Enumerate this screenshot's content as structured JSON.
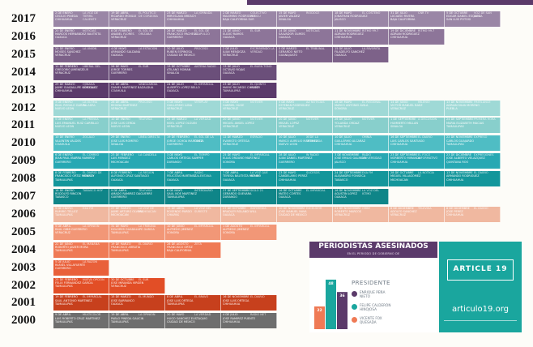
{
  "chart_data": {
    "type": "timeline",
    "rows": [
      {
        "year": "2017",
        "color": "#9a86a6",
        "cells": [
          [
            "2 DE ENERO\nCECILIO PINEDA\nCHIHUAHUA",
            "LA VOZ DE\nTIERRA CALIENTE"
          ],
          [
            "19 DE ABRIL\nRICARDO MONLUI\nVERACRUZ",
            "EL POLITICO\nDE CORDOBA"
          ],
          [
            "23 DE MARZO\nMIROSLAVA BREACH\nCHIHUAHUA",
            "LA JORNADA"
          ],
          [
            "2 DE MARZO\nMAXIMINO RODRIGUEZ\nBAJA CALIFORNIA SUR",
            "COLECTIVO PERICU"
          ],
          [
            "15 DE MAYO\nJAVIER VALDEZ\nSINALOA",
            "RIODOCE"
          ],
          [
            "18 DE MAYO\nJONATHAN RODRIGUEZ\nJALISCO",
            "EL COSTENO"
          ],
          [
            "31 DE JULIO\nLUCIANO RIVERA\nBAJA CALIFORNIA",
            "CNR TV"
          ],
          [
            "5 DE OCTUBRE\nEDGAR DANIEL ESQUEDA\nSAN LUIS POTOSI",
            "VOZ DE SAN LUIS"
          ]
        ]
      },
      {
        "year": "2016",
        "color": "#8d7599",
        "cells": [
          [
            "20 DE ENERO\nMARCOS HERNANDEZ BAUTISTA\nOAXACA",
            "NOTICIAS"
          ],
          [
            "8 DE FEBRERO\nANABEL FLORES\nVERACRUZ",
            "EL SOL DE ORIZABA"
          ],
          [
            "26 DE MARZO\nFRANCISCO PACHECO\nGUERRERO",
            "EL SOL DE ACAPULCO"
          ],
          [
            "21 DE JUNIO\nELIDIO RAMOS\nOAXACA",
            "EL SUR"
          ],
          [
            "14 DE JUNIO\nSALVADOR OLMOS\nOAXACA",
            "NOTICIAS"
          ],
          [
            "11 DE NOVIEMBRE\nADRIAN RODRIGUEZ\nCHIHUAHUA",
            "RITMO 99.7"
          ],
          [
            "19 DE DICIEMBRE\nADRIAN RODRIGUEZ\nCHIHUAHUA",
            "RITMO 99.7"
          ]
        ]
      },
      {
        "year": "2015",
        "color": "#7d6289",
        "cells": [
          [
            "20 DE ENERO\nMOISES SANCHEZ\nVERACRUZ",
            "LA UNION"
          ],
          [
            "4 DE MAYO\nARMANDO SALDANA\nOAXACA",
            "LA ESTACION"
          ],
          [
            "30 DE JULIO\nRUBEN ESPINOSA\nCIUDAD DE MEXICO",
            "PROCESO"
          ],
          [
            "2 DE JULIO\nJUAN MENDOZA\nVERACRUZ",
            "ESCRIBIENDO LA VERDAD"
          ],
          [
            "5 DE MARZO\nGERARDO NIETO\nGUANAJUATO",
            "EL TRIBUNAL"
          ],
          [
            "15 DE JULIO\nFILADELFO SANCHEZ\nOAXACA",
            "LA FAVORITA"
          ]
        ]
      },
      {
        "year": "2014",
        "color": "#6b4f7a",
        "cells": [
          [
            "11 DE FEBRERO\nGREGORIO JIMENEZ\nVERACRUZ",
            "LIBERAL DEL SUR"
          ],
          [
            "26 DE MAYO\nJORGE TORRES\nGUERRERO",
            "EL SUR"
          ],
          [
            "13 DE OCTUBRE\nATILANO ROMAN\nSINALOA",
            "ANTENA RADIO"
          ],
          [
            "13 DE JULIO\nOCTAVIO ROJAS\nOAXACA",
            "EL BUEN TONO"
          ]
        ]
      },
      {
        "year": "2013",
        "color": "#5b3a6a",
        "cells": [
          [
            "29 DE MARZO\nJAIME GUADALUPE GONZALEZ\nCHIHUAHUA",
            "OJINAGA NOTICIAS"
          ],
          [
            "24 DE ABRIL\nDANIEL MARTINEZ BAZALDUA\nCOAHUILA",
            "VANGUARDIA"
          ],
          [
            "24 DE JULIO\nALBERTO LOPEZ BELLO\nOAXACA",
            "EL IMPARCIAL"
          ],
          [
            "23 DE JULIO\nMARIO RICARDO CHAVEZ\nTAMAULIPAS",
            "EL QUINTO PODER"
          ]
        ]
      },
      {
        "year": "2012",
        "color": "#9fd9d6",
        "cells": [
          [
            "3 DE ENERO\nRAUL REGULO GARZA\nNUEVO LEON",
            "LA ULTIMA PALABRA"
          ],
          [
            "28 DE ABRIL\nREGINA MARTINEZ\nVERACRUZ",
            "PROCESO"
          ],
          [
            "3 DE MAYO\nGUILLERMO LUNA\nVERACRUZ",
            "VERIPLAY"
          ],
          [
            "3 DE MAYO\nGABRIEL HUGE\nVERACRUZ",
            "NOTIVER"
          ],
          [
            "3 DE MAYO\nESTEBAN RODRIGUEZ\nVERACRUZ",
            "AZ NOTICIAS"
          ],
          [
            "18 DE MAYO\nMARCO ANTONIO AVILA\nSONORA",
            "EL REGIONAL"
          ],
          [
            "14 DE JUNIO\nVICTOR MANUEL BAEZ\nVERACRUZ",
            "MILENIO"
          ],
          [
            "13 DE NOVIEMBRE\nADRIAN SILVA MORENO\nPUEBLA",
            "FREELANCE"
          ]
        ]
      },
      {
        "year": "2011",
        "color": "#88cfcc",
        "cells": [
          [
            "5 DE ENERO\nLUIS EMANUEL RUIZ CARRILLO\nNUEVO LEON",
            "LA PRENSA"
          ],
          [
            "10 DE ENERO\nJOSE LUIS CERDA\nNUEVO LEON",
            "TELEVISA"
          ],
          [
            "25 DE MARZO\nNOEL LOPEZ OLGUIN\nVERACRUZ",
            "LA VERDAD"
          ],
          [
            "20 DE JUNIO\nMIGUEL ANGEL LOPEZ\nVERACRUZ",
            "NOTIVER"
          ],
          [
            "20 DE JUNIO\nMISAEL LOPEZ\nVERACRUZ",
            "NOTIVER"
          ],
          [
            "26 DE JULIO\nYOLANDA ORDAZ\nVERACRUZ",
            "NOTIVER"
          ],
          [
            "1 DE SEPTIEMBRE\nHUMBERTO MILLAN\nSINALOA",
            "A DISCUSION"
          ],
          [
            "24 DE SEPTIEMBRE\nMARIA ELIZABETH MACIAS\nTAMAULIPAS",
            "PRIMERA HORA"
          ]
        ]
      },
      {
        "year": "2010",
        "color": "#4fbdc4",
        "cells": [
          [
            "10 DE ENERO\nVALENTIN VALDES\nCOAHUILA",
            "ZOCALO"
          ],
          [
            "29 DE ENERO\nJOSE LUIS ROMERO\nSINALOA",
            "LINEA DIRECTA"
          ],
          [
            "19 DE FEBRERO\nJORGE OCHOA MARTINEZ\nGUERRERO",
            "EL SOL DE LA COSTA"
          ],
          [
            "12 DE MARZO\nEVARISTO ORTEGA\nVERACRUZ",
            "ESPACIO"
          ],
          [
            "10 DE JULIO\nMARCO AURELIO MARTINEZ\nNUEVO LEON",
            "XEDE LA TREMENDA"
          ],
          [
            "10 DE JULIO\nGUILLERMO ALCARAZ\nCHIHUAHUA",
            "OMNIA"
          ],
          [
            "16 DE SEPTIEMBRE\nLUIS CARLOS SANTIAGO\nCHIHUAHUA",
            "EL DIARIO"
          ],
          [
            "22 DE NOVIEMBRE\nCARLOS GUAJARDO\nTAMAULIPAS",
            "EXPRESO"
          ]
        ]
      },
      {
        "year": "2009",
        "color": "#27a8b3",
        "cells": [
          [
            "6 DE ENERO\nJEAN PAUL IBARRA RAMIREZ\nGUERRERO",
            "EL CORREO"
          ],
          [
            "23 DE FEBRERO\nLUIS MENDEZ\nMICHOACAN",
            "LA CANDELA"
          ],
          [
            "3 DE MAYO\nCARLOS ORTEGA SAMPER\nDURANGO",
            "EL TIEMPO"
          ],
          [
            "25 DE MAYO\nELIAS ORDUNO MARTINEZ\nSONORA",
            "EL IMPARCIAL"
          ],
          [
            "28 DE JULIO\nJUAN DANIEL MARTINEZ\nGUERRERO",
            "W RADIO"
          ],
          [
            "3 DE NOVIEMBRE\nJOSE EMILIO GALINDO\nJALISCO",
            "RADIO UNIVERSIDAD"
          ],
          [
            "23 DE SEPTIEMBRE\nNORBERTO MIRANDA\nCHIHUAHUA",
            "EL FOCO INFORMATIVO"
          ],
          [
            "23 DE DICIEMBRE\nJOSE ALBERTO VELAZQUEZ\nQUINTANA ROO",
            "EXPRESIONES"
          ]
        ]
      },
      {
        "year": "2008",
        "color": "#13969b",
        "cells": [
          [
            "8 DE FEBRERO\nFRANCISCO ORTIZ MONROY\nTAMAULIPAS",
            "EL DIARIO DE MEXICO"
          ],
          [
            "8 DE FEBRERO\nALFONSO CRUZ SANTIAGO\nOAXACA",
            "LA REGION"
          ],
          [
            "7 DE ABRIL\nFELICITAS MARTINEZ\nOAXACA",
            "RADIO CALENTANA"
          ],
          [
            "7 DE ABRIL\nTERESA BAUTISTA MERINO\nOAXACA",
            "LA VOZ QUE ROMPE"
          ],
          [
            "23 DE MAYO\nCANDELARIO PEREZ\nCHIHUAHUA",
            "SUCESOS"
          ],
          [
            "24 DE SEPTIEMBRE\nALEJANDRO FONSECA\nTABASCO",
            "EXA FM"
          ],
          [
            "28 DE OCTUBRE\nMIGUEL VILLAGOMEZ\nMICHOACAN",
            "LA NOTICIA"
          ],
          [
            "13 DE NOVIEMBRE\nARMANDO RODRIGUEZ\nCHIHUAHUA",
            "EL DIARIO"
          ]
        ]
      },
      {
        "year": "2007",
        "color": "#0f8588",
        "cells": [
          [
            "18 DE ENERO\nRODOLFO RINCON\nTABASCO",
            "TABASCO HOY"
          ],
          [
            "9 DE ABRIL\nAMADO RAMIREZ DAGUERRE\nGUERRERO",
            "TELEVISA"
          ],
          [
            "8 DE MAYO\nSAUL NOE MARTINEZ\nTAMAULIPAS",
            "INTERDIARIO"
          ],
          [
            "27 DE SEPTIEMBRE\nGERARDO GUEVARA\nDURANGO",
            "SIGLO 21"
          ],
          [
            "16 DE OCTUBRE\nMATEO CORTES\nOAXACA",
            "EL IMPARCIAL"
          ],
          [
            "16 DE NOVIEMBRE\nAGUSTIN LOPEZ\nOAXACA",
            "LA VOZ DEL ISTMO"
          ]
        ]
      },
      {
        "year": "2006",
        "color": "#f0b8a0",
        "cells": [
          [
            "9 DE ENERO\nRAMIRO TELLEZ\nTAMAULIPAS",
            "EXA FM"
          ],
          [
            "27 DE MARZO\nJAIME ARTURO OLVERA\nMICHOACAN",
            "LA VOZ DE MICHOACAN"
          ],
          [
            "15 DE ABRIL\nROSENDO PARDO\nCHIAPAS",
            "LA VOZ DEL SURESTE"
          ],
          [
            "27 DE OCTUBRE\nBRADLEY ROLAND WILL\nOAXACA",
            "INDYMEDIA"
          ],
          [
            "10 DE NOVIEMBRE\nJOSE MANUEL NAVA\nCIUDAD DE MEXICO",
            "EXCELSIOR"
          ],
          [
            "21 DE NOVIEMBRE\nROBERTO MARCOS\nVERACRUZ",
            "ORBE"
          ],
          [
            "8 DE DICIEMBRE\nADOLFO SANCHEZ\nVERACRUZ",
            "TELEVISA"
          ],
          [
            "8 DE DICIEMBRE\nJOSE PEREZ\nCHIHUAHUA",
            "EL DIARIO"
          ]
        ]
      },
      {
        "year": "2005",
        "color": "#f29777",
        "cells": [
          [
            "5 DE ABRIL\nRAUL GIBB GUERRERO\nVERACRUZ",
            "LA OPINION"
          ],
          [
            "31 DE MAYO\nDOLORES GUADALUPE GARCIA\nTAMAULIPAS",
            "LA TRIBUNA"
          ],
          [
            "10 DE JUNIO\nALFREDO JIMENEZ\nSONORA",
            "EL IMPARCIAL"
          ],
          [
            "1 DE AGOSTO\nALFREDO JIMENEZ\nSONORA",
            "EL IMPARCIAL"
          ]
        ]
      },
      {
        "year": "2004",
        "color": "#ef7a55",
        "cells": [
          [
            "22 DE JUNIO\nROBERTO JAVIER MORA\nTAMAULIPAS",
            "EL MANANA"
          ],
          [
            "19 DE MARZO\nFRANCISCO ARRATIA\nTAMAULIPAS",
            "EL DIARIO"
          ],
          [
            "28 DE AGOSTO\nFRANCISCO ORTIZ\nBAJA CALIFORNIA",
            "ZETA"
          ]
        ]
      },
      {
        "year": "2003",
        "color": "#e9603a",
        "cells": [
          [
            "5 DE JULIO\nRAFAEL VILLAFUERTE\nGUERRERO",
            "LA RAZON"
          ]
        ]
      },
      {
        "year": "2002",
        "color": "#e24e26",
        "cells": [
          [
            "25 DE FEBRERO\nFELIX FERNANDEZ GARCIA\nTAMAULIPAS",
            "NUEVA OPCION"
          ],
          [
            "30 DE OCTUBRE\nJOSE MIRANDA VIRGEN\nVERACRUZ",
            "EL SUR"
          ]
        ]
      },
      {
        "year": "2001",
        "color": "#c7401d",
        "cells": [
          [
            "19 DE FEBRERO\nSAUL ANTONIO MARTINEZ\nTAMAULIPAS",
            "EL IMPARCIAL"
          ],
          [
            "15 DE MARZO\nJOSE BARRANCO\nOAXACA",
            "EL MUNDO"
          ],
          [
            "8 DE ABRIL\nJOSE LUIS ORTEGA\nTAMAULIPAS",
            "EL BRAVO"
          ],
          [
            "16 DE NOVIEMBRE\nJOSE LUIS ORTEGA\nCHIHUAHUA",
            "EL DIARIO"
          ]
        ]
      },
      {
        "year": "2000",
        "color": "#6e6e6e",
        "cells": [
          [
            "9 DE ABRIL\nLUIS ROBERTO CRUZ MARTINEZ\nTAMAULIPAS",
            "MULTICOLOR"
          ],
          [
            "19 DE ABRIL\nPABLO PINEDA GAUCIN\nTAMAULIPAS",
            "LA OPINION"
          ],
          [
            "20 DE MAYO\nHUGO SANCHEZ EUSTAQUIO\nCIUDAD DE MEXICO",
            "LA VERDAD"
          ],
          [
            "4 DE JULIO\nJOSE RAMIREZ PUENTE\nCHIHUAHUA",
            "RADIO NET"
          ]
        ]
      }
    ],
    "inset": {
      "type": "bar",
      "title": "PERIODISTAS ASESINADOS",
      "subtitle": "EN EL PERIODO DE GOBIERNO DE",
      "legend_title": "PRESIDENTE",
      "series": [
        {
          "name": "ENRIQUE PEÑA\nNIETO",
          "value": 36,
          "color": "#5b3a6a"
        },
        {
          "name": "FELIPE CALDERÓN\nHINOJOSA",
          "value": 48,
          "color": "#1aa69e"
        },
        {
          "name": "VICENTE FOX\nQUESADA",
          "value": 22,
          "color": "#ef7a55"
        }
      ],
      "ylim": [
        0,
        55
      ]
    }
  },
  "brand": {
    "logo": "ARTICLE 19",
    "url": "articulo19.org"
  }
}
